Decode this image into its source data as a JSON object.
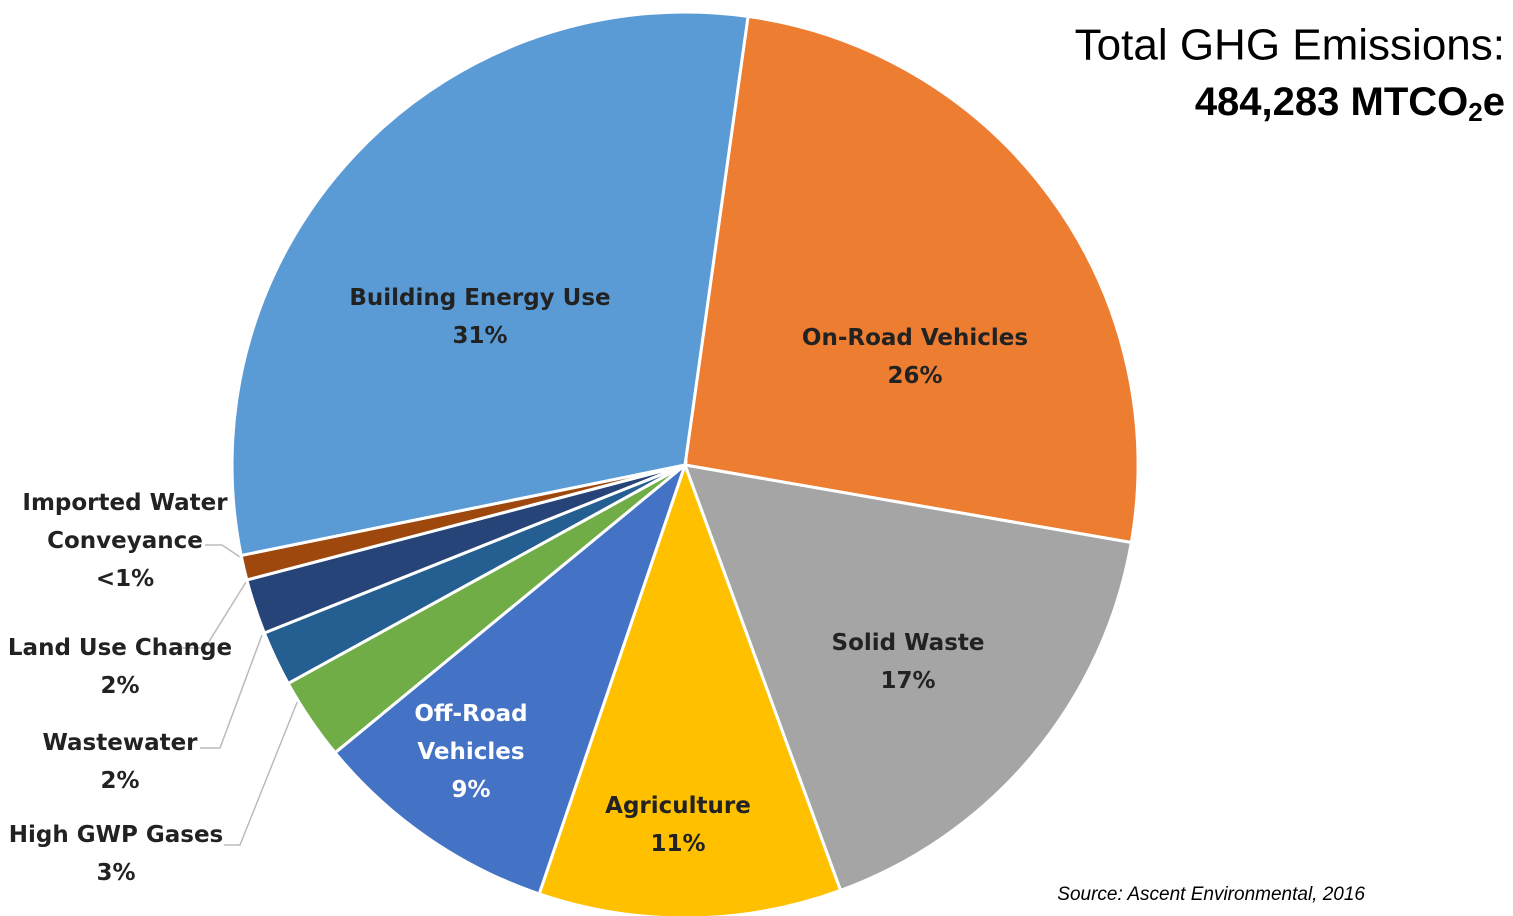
{
  "chart_data": {
    "type": "pie",
    "title": "Total GHG Emissions:",
    "subtitle_parts": [
      "484,283 MTCO",
      "2",
      "e"
    ],
    "source": "Source: Ascent Environmental, 2016",
    "categories": [
      "On-Road Vehicles",
      "Solid Waste",
      "Agriculture",
      "Off-Road Vehicles",
      "High GWP Gases",
      "Wastewater",
      "Land Use Change",
      "Imported Water Conveyance",
      "Building Energy Use"
    ],
    "values": [
      26,
      17,
      11,
      9,
      3,
      2,
      2,
      0.9,
      31
    ],
    "value_labels": [
      "26%",
      "17%",
      "11%",
      "9%",
      "3%",
      "2%",
      "2%",
      "<1%",
      "31%"
    ],
    "colors": [
      "#ed7d31",
      "#a5a5a5",
      "#ffc000",
      "#4472c4",
      "#70ad47",
      "#255e91",
      "#264478",
      "#9e480e",
      "#5b9bd5"
    ]
  }
}
